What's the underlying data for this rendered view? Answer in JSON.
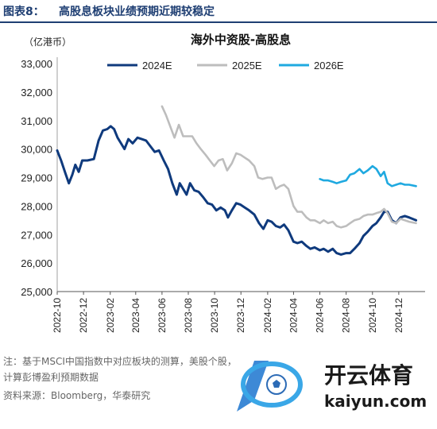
{
  "header": {
    "label": "图表8：",
    "title": "高股息板块业绩预期近期较稳定"
  },
  "notes": {
    "line1": "注：基于MSCI中国指数中对应板块的测算，",
    "line1b": "美股",
    "line1c": "个股，",
    "line2": "计算彭博盈利预期数据",
    "source": "资料来源：Bloomberg，华泰研究"
  },
  "watermark": {
    "brand": "开云体育",
    "url": "kaiyun.com"
  },
  "colors": {
    "s2024": "#0f3a7d",
    "s2025": "#bdbdbd",
    "s2026": "#1fa9e0",
    "header": "#1f3f73"
  },
  "chart_data": {
    "type": "line",
    "title": "海外中资股-高股息",
    "ylabel": "（亿港币）",
    "ylim": [
      25000,
      33000
    ],
    "yticks": [
      "25,000",
      "26,000",
      "27,000",
      "28,000",
      "29,000",
      "30,000",
      "31,000",
      "32,000",
      "33,000"
    ],
    "xlim": [
      "2022-10-01",
      "2025-01-31"
    ],
    "xticks": [
      "2022-10",
      "2022-12",
      "2023-02",
      "2023-04",
      "2023-06",
      "2023-08",
      "2023-10",
      "2023-12",
      "2024-02",
      "2024-04",
      "2024-06",
      "2024-08",
      "2024-10",
      "2024-12"
    ],
    "legend_position": "top",
    "series": [
      {
        "name": "2024E",
        "color": "#0f3a7d",
        "points": [
          [
            "2022-10-01",
            29950
          ],
          [
            "2022-10-10",
            29600
          ],
          [
            "2022-10-20",
            29150
          ],
          [
            "2022-10-28",
            28800
          ],
          [
            "2022-11-05",
            29100
          ],
          [
            "2022-11-12",
            29450
          ],
          [
            "2022-11-20",
            29200
          ],
          [
            "2022-11-28",
            29600
          ],
          [
            "2022-12-10",
            29600
          ],
          [
            "2022-12-25",
            29650
          ],
          [
            "2023-01-05",
            30300
          ],
          [
            "2023-01-15",
            30650
          ],
          [
            "2023-01-25",
            30700
          ],
          [
            "2023-02-02",
            30800
          ],
          [
            "2023-02-10",
            30700
          ],
          [
            "2023-02-18",
            30400
          ],
          [
            "2023-02-26",
            30200
          ],
          [
            "2023-03-06",
            30000
          ],
          [
            "2023-03-15",
            30350
          ],
          [
            "2023-03-25",
            30200
          ],
          [
            "2023-04-05",
            30400
          ],
          [
            "2023-04-15",
            30350
          ],
          [
            "2023-04-25",
            30300
          ],
          [
            "2023-05-05",
            30100
          ],
          [
            "2023-05-15",
            29900
          ],
          [
            "2023-05-25",
            29950
          ],
          [
            "2023-06-05",
            29600
          ],
          [
            "2023-06-15",
            29300
          ],
          [
            "2023-06-25",
            28800
          ],
          [
            "2023-07-05",
            28400
          ],
          [
            "2023-07-12",
            28800
          ],
          [
            "2023-07-20",
            28600
          ],
          [
            "2023-07-28",
            28400
          ],
          [
            "2023-08-05",
            28800
          ],
          [
            "2023-08-15",
            28550
          ],
          [
            "2023-08-25",
            28500
          ],
          [
            "2023-09-05",
            28300
          ],
          [
            "2023-09-15",
            28100
          ],
          [
            "2023-09-25",
            28050
          ],
          [
            "2023-10-05",
            27850
          ],
          [
            "2023-10-15",
            27950
          ],
          [
            "2023-10-25",
            27850
          ],
          [
            "2023-11-01",
            27600
          ],
          [
            "2023-11-10",
            27850
          ],
          [
            "2023-11-20",
            28100
          ],
          [
            "2023-11-30",
            28050
          ],
          [
            "2023-12-10",
            27950
          ],
          [
            "2023-12-20",
            27850
          ],
          [
            "2024-01-01",
            27700
          ],
          [
            "2024-01-12",
            27400
          ],
          [
            "2024-01-22",
            27200
          ],
          [
            "2024-02-01",
            27500
          ],
          [
            "2024-02-10",
            27450
          ],
          [
            "2024-02-20",
            27300
          ],
          [
            "2024-03-01",
            27250
          ],
          [
            "2024-03-10",
            27350
          ],
          [
            "2024-03-20",
            27150
          ],
          [
            "2024-04-01",
            26750
          ],
          [
            "2024-04-10",
            26700
          ],
          [
            "2024-04-20",
            26750
          ],
          [
            "2024-05-01",
            26600
          ],
          [
            "2024-05-10",
            26500
          ],
          [
            "2024-05-20",
            26550
          ],
          [
            "2024-06-01",
            26450
          ],
          [
            "2024-06-10",
            26500
          ],
          [
            "2024-06-20",
            26400
          ],
          [
            "2024-07-01",
            26500
          ],
          [
            "2024-07-10",
            26350
          ],
          [
            "2024-07-20",
            26300
          ],
          [
            "2024-08-01",
            26350
          ],
          [
            "2024-08-10",
            26350
          ],
          [
            "2024-08-20",
            26500
          ],
          [
            "2024-09-01",
            26700
          ],
          [
            "2024-09-10",
            26950
          ],
          [
            "2024-09-20",
            27100
          ],
          [
            "2024-10-01",
            27300
          ],
          [
            "2024-10-10",
            27400
          ],
          [
            "2024-10-20",
            27600
          ],
          [
            "2024-10-28",
            27800
          ],
          [
            "2024-11-05",
            27800
          ],
          [
            "2024-11-15",
            27500
          ],
          [
            "2024-11-25",
            27400
          ],
          [
            "2024-12-05",
            27600
          ],
          [
            "2024-12-15",
            27650
          ],
          [
            "2024-12-25",
            27600
          ],
          [
            "2025-01-10",
            27500
          ]
        ]
      },
      {
        "name": "2025E",
        "color": "#bdbdbd",
        "points": [
          [
            "2023-06-01",
            31500
          ],
          [
            "2023-06-10",
            31200
          ],
          [
            "2023-06-20",
            30800
          ],
          [
            "2023-06-30",
            30400
          ],
          [
            "2023-07-10",
            30850
          ],
          [
            "2023-07-20",
            30450
          ],
          [
            "2023-07-30",
            30450
          ],
          [
            "2023-08-10",
            30450
          ],
          [
            "2023-08-20",
            30200
          ],
          [
            "2023-08-30",
            30000
          ],
          [
            "2023-09-10",
            29800
          ],
          [
            "2023-09-20",
            29600
          ],
          [
            "2023-09-30",
            29400
          ],
          [
            "2023-10-10",
            29600
          ],
          [
            "2023-10-20",
            29650
          ],
          [
            "2023-10-30",
            29250
          ],
          [
            "2023-11-10",
            29500
          ],
          [
            "2023-11-20",
            29850
          ],
          [
            "2023-11-30",
            29800
          ],
          [
            "2023-12-10",
            29700
          ],
          [
            "2023-12-20",
            29600
          ],
          [
            "2024-01-01",
            29400
          ],
          [
            "2024-01-10",
            29000
          ],
          [
            "2024-01-20",
            28950
          ],
          [
            "2024-02-01",
            29000
          ],
          [
            "2024-02-10",
            29000
          ],
          [
            "2024-02-20",
            28600
          ],
          [
            "2024-03-01",
            28700
          ],
          [
            "2024-03-10",
            28750
          ],
          [
            "2024-03-20",
            28600
          ],
          [
            "2024-04-01",
            28000
          ],
          [
            "2024-04-10",
            27800
          ],
          [
            "2024-04-20",
            27800
          ],
          [
            "2024-05-01",
            27600
          ],
          [
            "2024-05-10",
            27500
          ],
          [
            "2024-05-20",
            27500
          ],
          [
            "2024-06-01",
            27400
          ],
          [
            "2024-06-10",
            27500
          ],
          [
            "2024-06-20",
            27400
          ],
          [
            "2024-07-01",
            27450
          ],
          [
            "2024-07-10",
            27300
          ],
          [
            "2024-07-20",
            27250
          ],
          [
            "2024-08-01",
            27300
          ],
          [
            "2024-08-10",
            27400
          ],
          [
            "2024-08-20",
            27500
          ],
          [
            "2024-09-01",
            27550
          ],
          [
            "2024-09-10",
            27650
          ],
          [
            "2024-09-20",
            27700
          ],
          [
            "2024-10-01",
            27700
          ],
          [
            "2024-10-10",
            27750
          ],
          [
            "2024-10-20",
            27800
          ],
          [
            "2024-10-28",
            27900
          ],
          [
            "2024-11-05",
            27750
          ],
          [
            "2024-11-15",
            27450
          ],
          [
            "2024-11-25",
            27400
          ],
          [
            "2024-12-05",
            27550
          ],
          [
            "2024-12-15",
            27500
          ],
          [
            "2024-12-25",
            27450
          ],
          [
            "2025-01-10",
            27400
          ]
        ]
      },
      {
        "name": "2026E",
        "color": "#1fa9e0",
        "points": [
          [
            "2024-06-01",
            28950
          ],
          [
            "2024-06-10",
            28900
          ],
          [
            "2024-06-20",
            28900
          ],
          [
            "2024-07-01",
            28850
          ],
          [
            "2024-07-10",
            28800
          ],
          [
            "2024-07-20",
            28850
          ],
          [
            "2024-08-01",
            28900
          ],
          [
            "2024-08-10",
            29100
          ],
          [
            "2024-08-20",
            29150
          ],
          [
            "2024-09-01",
            29300
          ],
          [
            "2024-09-10",
            29150
          ],
          [
            "2024-09-20",
            29250
          ],
          [
            "2024-10-01",
            29400
          ],
          [
            "2024-10-10",
            29300
          ],
          [
            "2024-10-20",
            29050
          ],
          [
            "2024-10-28",
            29200
          ],
          [
            "2024-11-05",
            28800
          ],
          [
            "2024-11-15",
            28700
          ],
          [
            "2024-11-25",
            28750
          ],
          [
            "2024-12-05",
            28800
          ],
          [
            "2024-12-15",
            28750
          ],
          [
            "2024-12-25",
            28750
          ],
          [
            "2025-01-10",
            28700
          ]
        ]
      }
    ]
  }
}
